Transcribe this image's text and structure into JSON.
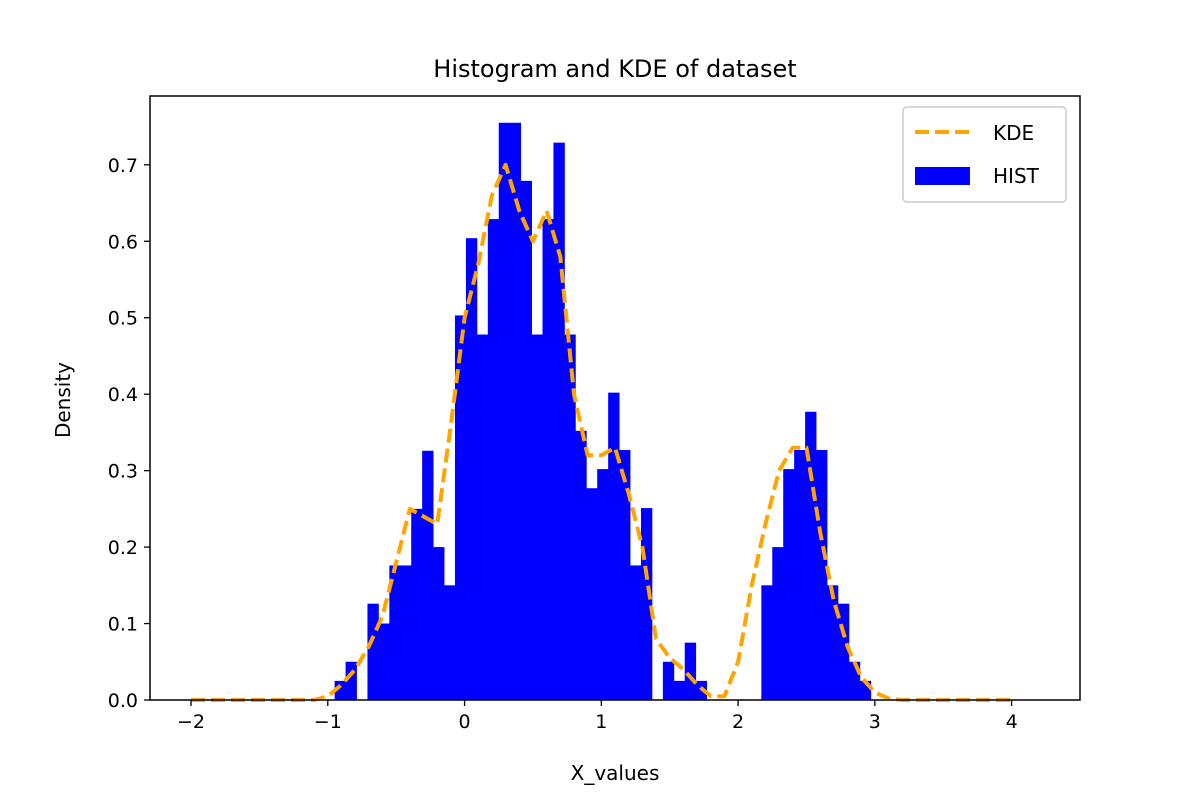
{
  "chart_data": {
    "type": "bar",
    "title": "Histogram and KDE of dataset",
    "xlabel": "X_values",
    "ylabel": "Density",
    "xlim": [
      -2.3,
      4.5
    ],
    "ylim": [
      0.0,
      0.79
    ],
    "xticks": [
      -2,
      -1,
      0,
      1,
      2,
      3,
      4
    ],
    "xtick_labels": [
      "−2",
      "−1",
      "0",
      "1",
      "2",
      "3",
      "4"
    ],
    "yticks": [
      0.0,
      0.1,
      0.2,
      0.3,
      0.4,
      0.5,
      0.6,
      0.7
    ],
    "ytick_labels": [
      "0.0",
      "0.1",
      "0.2",
      "0.3",
      "0.4",
      "0.5",
      "0.6",
      "0.7"
    ],
    "grid": false,
    "legend_position": "top-right",
    "histogram": {
      "name": "HIST",
      "color": "#0000ff",
      "bin_width": 0.08,
      "bins": [
        [
          -0.95,
          0.025
        ],
        [
          -0.87,
          0.05
        ],
        [
          -0.79,
          0.0
        ],
        [
          -0.71,
          0.126
        ],
        [
          -0.63,
          0.1
        ],
        [
          -0.55,
          0.176
        ],
        [
          -0.47,
          0.176
        ],
        [
          -0.39,
          0.25
        ],
        [
          -0.31,
          0.326
        ],
        [
          -0.23,
          0.2
        ],
        [
          -0.15,
          0.15
        ],
        [
          -0.07,
          0.503
        ],
        [
          0.01,
          0.604
        ],
        [
          0.09,
          0.478
        ],
        [
          0.17,
          0.629
        ],
        [
          0.25,
          0.755
        ],
        [
          0.33,
          0.755
        ],
        [
          0.41,
          0.679
        ],
        [
          0.49,
          0.478
        ],
        [
          0.57,
          0.629
        ],
        [
          0.65,
          0.729
        ],
        [
          0.73,
          0.478
        ],
        [
          0.81,
          0.352
        ],
        [
          0.89,
          0.277
        ],
        [
          0.97,
          0.302
        ],
        [
          1.05,
          0.402
        ],
        [
          1.13,
          0.327
        ],
        [
          1.21,
          0.176
        ],
        [
          1.29,
          0.251
        ],
        [
          1.37,
          0.0
        ],
        [
          1.45,
          0.05
        ],
        [
          1.53,
          0.025
        ],
        [
          1.61,
          0.075
        ],
        [
          1.69,
          0.025
        ],
        [
          2.17,
          0.15
        ],
        [
          2.25,
          0.2
        ],
        [
          2.33,
          0.302
        ],
        [
          2.41,
          0.327
        ],
        [
          2.49,
          0.377
        ],
        [
          2.57,
          0.327
        ],
        [
          2.65,
          0.15
        ],
        [
          2.73,
          0.126
        ],
        [
          2.81,
          0.05
        ],
        [
          2.89,
          0.025
        ]
      ]
    },
    "kde": {
      "name": "KDE",
      "color": "#ffa500",
      "style": "dashed",
      "x": [
        -2.0,
        -1.1,
        -1.0,
        -0.9,
        -0.8,
        -0.7,
        -0.6,
        -0.5,
        -0.4,
        -0.3,
        -0.2,
        -0.1,
        0.0,
        0.1,
        0.2,
        0.3,
        0.4,
        0.5,
        0.6,
        0.7,
        0.8,
        0.9,
        1.0,
        1.1,
        1.2,
        1.3,
        1.4,
        1.5,
        1.6,
        1.7,
        1.8,
        1.9,
        2.0,
        2.1,
        2.2,
        2.3,
        2.4,
        2.5,
        2.6,
        2.7,
        2.8,
        2.9,
        3.0,
        3.1,
        3.2,
        4.0
      ],
      "y": [
        0.0,
        0.0,
        0.005,
        0.02,
        0.04,
        0.07,
        0.11,
        0.18,
        0.25,
        0.24,
        0.23,
        0.36,
        0.5,
        0.57,
        0.66,
        0.7,
        0.64,
        0.6,
        0.64,
        0.58,
        0.4,
        0.32,
        0.32,
        0.33,
        0.27,
        0.2,
        0.08,
        0.055,
        0.04,
        0.02,
        0.005,
        0.005,
        0.05,
        0.15,
        0.23,
        0.3,
        0.33,
        0.33,
        0.22,
        0.13,
        0.07,
        0.03,
        0.01,
        0.002,
        0.0,
        0.0
      ]
    },
    "legend": [
      {
        "name": "KDE",
        "kind": "line"
      },
      {
        "name": "HIST",
        "kind": "patch"
      }
    ]
  }
}
